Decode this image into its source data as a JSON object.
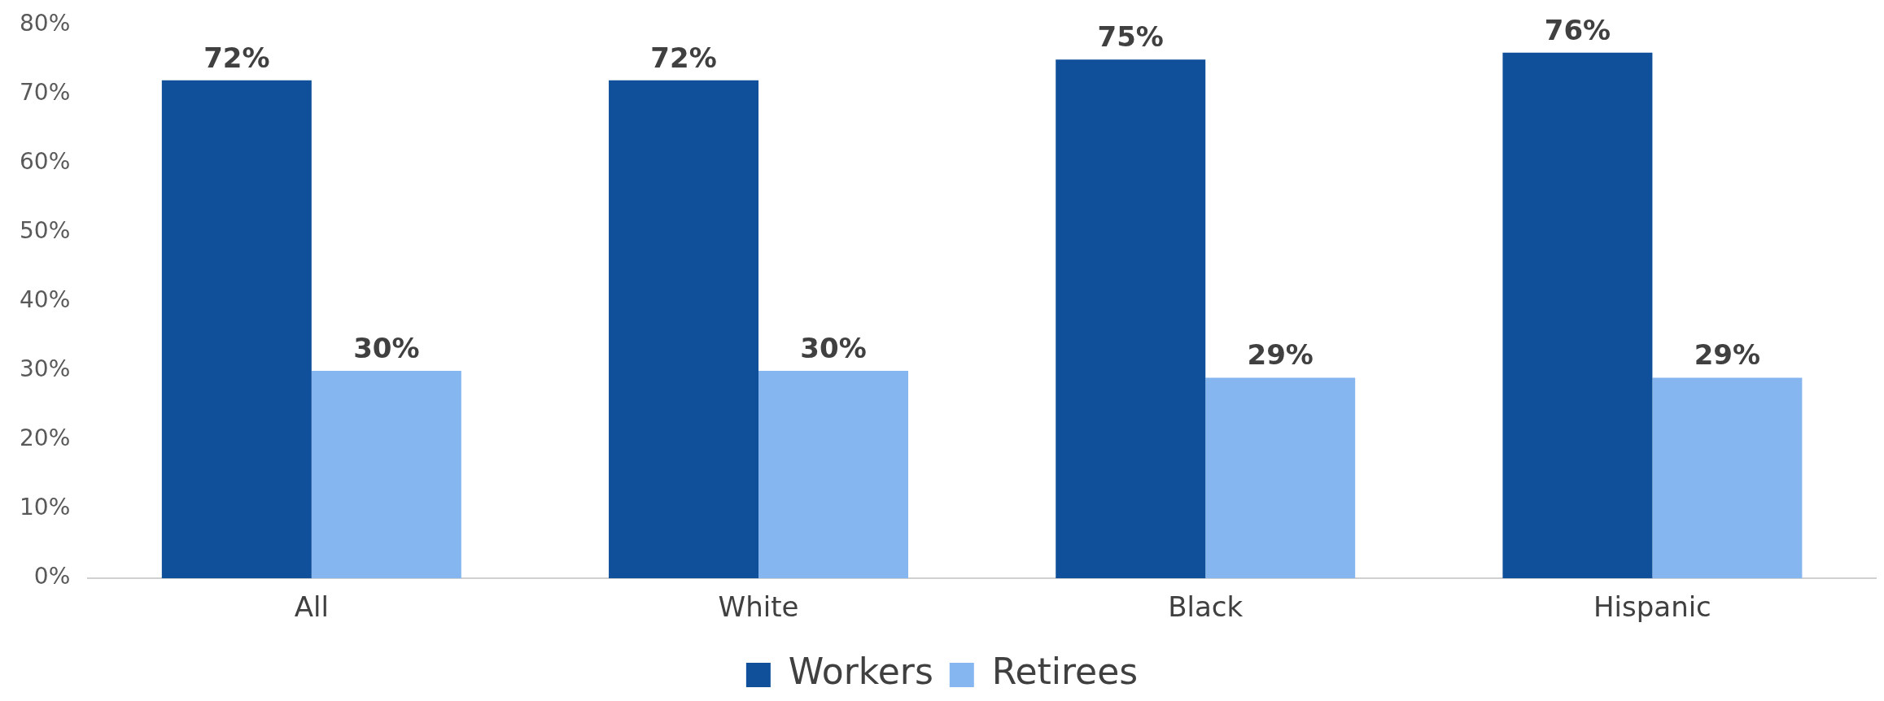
{
  "chart_data": {
    "type": "bar",
    "categories": [
      "All",
      "White",
      "Black",
      "Hispanic"
    ],
    "series": [
      {
        "name": "Workers",
        "color": "#10509a",
        "values": [
          72,
          72,
          75,
          76
        ],
        "value_labels": [
          "72%",
          "72%",
          "75%",
          "76%"
        ]
      },
      {
        "name": "Retirees",
        "color": "#85b6ef",
        "values": [
          30,
          30,
          29,
          29
        ],
        "value_labels": [
          "30%",
          "30%",
          "29%",
          "29%"
        ]
      }
    ],
    "ylim": [
      0,
      80
    ],
    "yticks": [
      {
        "value": 0,
        "label": "0%"
      },
      {
        "value": 10,
        "label": "10%"
      },
      {
        "value": 20,
        "label": "20%"
      },
      {
        "value": 30,
        "label": "30%"
      },
      {
        "value": 40,
        "label": "40%"
      },
      {
        "value": 50,
        "label": "50%"
      },
      {
        "value": 60,
        "label": "60%"
      },
      {
        "value": 70,
        "label": "70%"
      },
      {
        "value": 80,
        "label": "80%"
      }
    ],
    "grid": false,
    "legend": "bottom"
  }
}
